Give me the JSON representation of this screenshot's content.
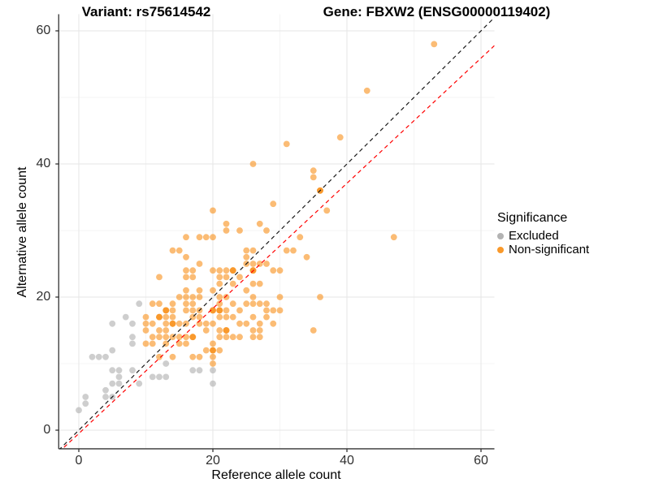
{
  "chart_data": {
    "type": "scatter",
    "title_left": "Variant: rs75614542",
    "title_right": "Gene: FBXW2 (ENSG00000119402)",
    "xlabel": "Reference allele count",
    "ylabel": "Alternative allele count",
    "xlim": [
      -3,
      62
    ],
    "ylim": [
      -2.8,
      62.5
    ],
    "major_ticks": [
      0,
      20,
      40,
      60
    ],
    "minor_gridlines": [
      10,
      30,
      50
    ],
    "grid": "on",
    "legend": {
      "title": "Significance",
      "position": "right",
      "entries": [
        {
          "label": "Excluded",
          "color": "#b3b3b3"
        },
        {
          "label": "Non-significant",
          "color": "#f9992b"
        }
      ]
    },
    "lines": [
      {
        "name": "identity-line",
        "color": "#1a1a1a",
        "slope": 1,
        "intercept": 0,
        "dashed": true
      },
      {
        "name": "fit-line",
        "color": "#ff0000",
        "slope": 0.94,
        "intercept": -0.5,
        "dashed": true
      }
    ],
    "series": [
      {
        "name": "Excluded",
        "color": "#b0b0b0",
        "points": [
          [
            0,
            3
          ],
          [
            1,
            4
          ],
          [
            1,
            5
          ],
          [
            4,
            5
          ],
          [
            5,
            5
          ],
          [
            4,
            6
          ],
          [
            5,
            7
          ],
          [
            6,
            7
          ],
          [
            9,
            7
          ],
          [
            20,
            7
          ],
          [
            6,
            8
          ],
          [
            11,
            8
          ],
          [
            12,
            8
          ],
          [
            13,
            8
          ],
          [
            5,
            9
          ],
          [
            6,
            9
          ],
          [
            8,
            9
          ],
          [
            17,
            9
          ],
          [
            18,
            9
          ],
          [
            20,
            9
          ],
          [
            13,
            10
          ],
          [
            2,
            11
          ],
          [
            3,
            11
          ],
          [
            4,
            11
          ],
          [
            5,
            12
          ],
          [
            8,
            13
          ],
          [
            8,
            14
          ],
          [
            5,
            16
          ],
          [
            8,
            16
          ],
          [
            7,
            17
          ],
          [
            9,
            19
          ]
        ]
      },
      {
        "name": "Non-significant",
        "color": "#f99321",
        "points": [
          [
            20,
            10
          ],
          [
            12,
            11
          ],
          [
            14,
            11
          ],
          [
            17,
            11
          ],
          [
            18,
            11
          ],
          [
            20,
            11
          ],
          [
            19,
            12
          ],
          [
            20,
            12
          ],
          [
            21,
            12
          ],
          [
            10,
            13
          ],
          [
            11,
            13
          ],
          [
            13,
            13
          ],
          [
            15,
            13
          ],
          [
            16,
            13
          ],
          [
            20,
            13
          ],
          [
            11,
            14
          ],
          [
            12,
            14
          ],
          [
            13,
            14
          ],
          [
            14,
            14
          ],
          [
            15,
            14
          ],
          [
            16,
            14
          ],
          [
            17,
            14
          ],
          [
            21,
            14
          ],
          [
            22,
            14
          ],
          [
            23,
            14
          ],
          [
            24,
            14
          ],
          [
            26,
            14
          ],
          [
            27,
            14
          ],
          [
            10,
            15
          ],
          [
            12,
            15
          ],
          [
            13,
            15
          ],
          [
            19,
            15
          ],
          [
            21,
            15
          ],
          [
            22,
            15
          ],
          [
            26,
            15
          ],
          [
            27,
            15
          ],
          [
            35,
            15
          ],
          [
            10,
            16
          ],
          [
            11,
            16
          ],
          [
            13,
            16
          ],
          [
            14,
            16
          ],
          [
            15,
            16
          ],
          [
            16,
            16
          ],
          [
            18,
            16
          ],
          [
            19,
            16
          ],
          [
            20,
            16
          ],
          [
            24,
            16
          ],
          [
            25,
            16
          ],
          [
            27,
            16
          ],
          [
            29,
            16
          ],
          [
            10,
            17
          ],
          [
            12,
            17
          ],
          [
            13,
            17
          ],
          [
            14,
            17
          ],
          [
            17,
            17
          ],
          [
            18,
            17
          ],
          [
            21,
            17
          ],
          [
            22,
            17
          ],
          [
            23,
            17
          ],
          [
            26,
            17
          ],
          [
            28,
            17
          ],
          [
            13,
            18
          ],
          [
            14,
            18
          ],
          [
            16,
            18
          ],
          [
            17,
            18
          ],
          [
            18,
            18
          ],
          [
            20,
            18
          ],
          [
            21,
            18
          ],
          [
            22,
            18
          ],
          [
            24,
            18
          ],
          [
            28,
            18
          ],
          [
            29,
            18
          ],
          [
            30,
            18
          ],
          [
            11,
            19
          ],
          [
            12,
            19
          ],
          [
            14,
            19
          ],
          [
            16,
            19
          ],
          [
            17,
            19
          ],
          [
            21,
            19
          ],
          [
            23,
            19
          ],
          [
            25,
            19
          ],
          [
            26,
            19
          ],
          [
            27,
            19
          ],
          [
            28,
            19
          ],
          [
            15,
            20
          ],
          [
            16,
            20
          ],
          [
            17,
            20
          ],
          [
            18,
            20
          ],
          [
            21,
            20
          ],
          [
            22,
            20
          ],
          [
            26,
            20
          ],
          [
            30,
            20
          ],
          [
            36,
            20
          ],
          [
            16,
            21
          ],
          [
            18,
            21
          ],
          [
            20,
            21
          ],
          [
            25,
            21
          ],
          [
            21,
            22
          ],
          [
            23,
            22
          ],
          [
            26,
            22
          ],
          [
            27,
            22
          ],
          [
            12,
            23
          ],
          [
            16,
            23
          ],
          [
            17,
            23
          ],
          [
            21,
            23
          ],
          [
            22,
            23
          ],
          [
            24,
            23
          ],
          [
            16,
            24
          ],
          [
            17,
            24
          ],
          [
            20,
            24
          ],
          [
            21,
            24
          ],
          [
            22,
            24
          ],
          [
            23,
            24
          ],
          [
            26,
            24
          ],
          [
            29,
            24
          ],
          [
            30,
            24
          ],
          [
            18,
            25
          ],
          [
            25,
            25
          ],
          [
            26,
            25
          ],
          [
            27,
            25
          ],
          [
            28,
            25
          ],
          [
            16,
            26
          ],
          [
            25,
            26
          ],
          [
            34,
            26
          ],
          [
            14,
            27
          ],
          [
            15,
            27
          ],
          [
            25,
            27
          ],
          [
            26,
            27
          ],
          [
            31,
            27
          ],
          [
            32,
            27
          ],
          [
            16,
            29
          ],
          [
            18,
            29
          ],
          [
            19,
            29
          ],
          [
            20,
            29
          ],
          [
            33,
            29
          ],
          [
            47,
            29
          ],
          [
            22,
            30
          ],
          [
            24,
            30
          ],
          [
            28,
            30
          ],
          [
            22,
            31
          ],
          [
            27,
            31
          ],
          [
            20,
            33
          ],
          [
            37,
            33
          ],
          [
            29,
            34
          ],
          [
            36,
            36
          ],
          [
            35,
            38
          ],
          [
            35,
            39
          ],
          [
            26,
            40
          ],
          [
            31,
            43
          ],
          [
            39,
            44
          ],
          [
            43,
            51
          ],
          [
            53,
            58
          ]
        ],
        "overplotted_points": [
          [
            22,
            15
          ],
          [
            20,
            12
          ],
          [
            23,
            24
          ],
          [
            21,
            18
          ],
          [
            13,
            18
          ],
          [
            14,
            16
          ],
          [
            17,
            14
          ],
          [
            20,
            18
          ],
          [
            26,
            24
          ],
          [
            12,
            17
          ],
          [
            36,
            36
          ]
        ]
      }
    ]
  }
}
